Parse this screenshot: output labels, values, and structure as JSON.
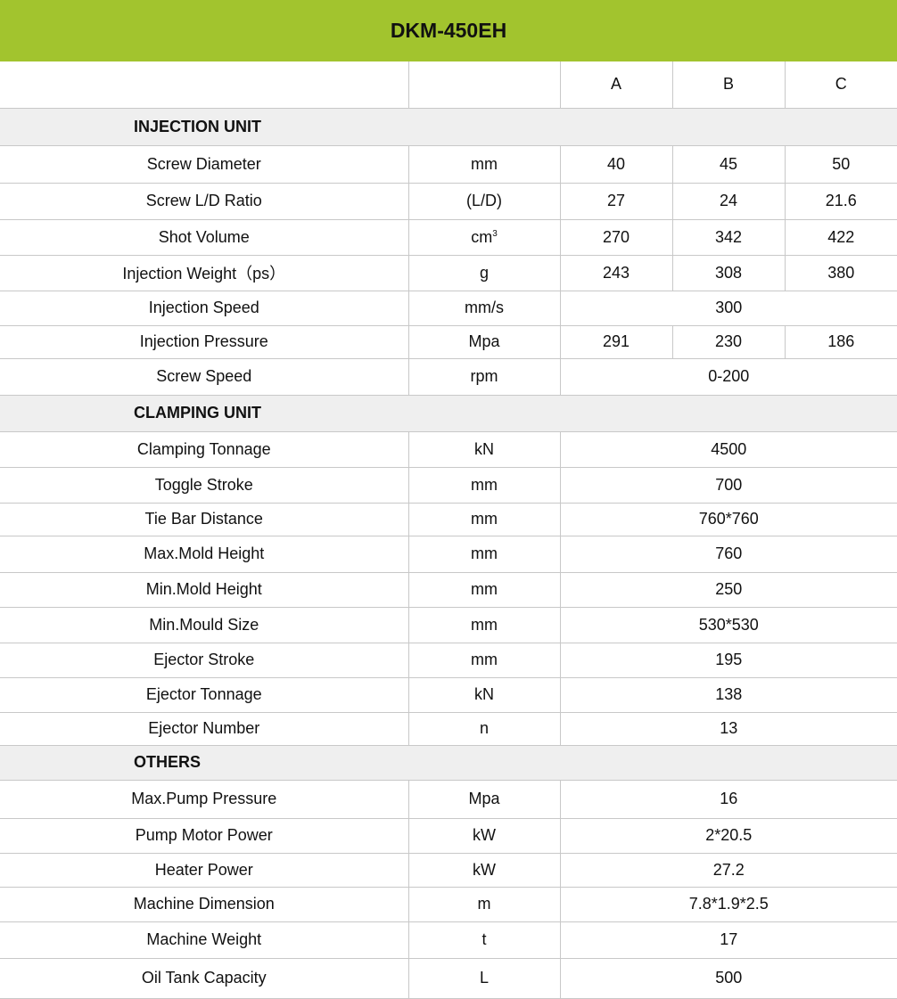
{
  "title": "DKM-450EH",
  "colors": {
    "header": "#a2c42e",
    "section": "#efefef",
    "border": "#c8c8c8"
  },
  "columns": [
    "",
    "",
    "A",
    "B",
    "C"
  ],
  "sections": [
    {
      "name": "INJECTION UNIT",
      "rows": [
        {
          "label": "Screw Diameter",
          "unit": "mm",
          "values": [
            "40",
            "45",
            "50"
          ]
        },
        {
          "label": "Screw L/D Ratio",
          "unit": "(L/D)",
          "values": [
            "27",
            "24",
            "21.6"
          ]
        },
        {
          "label": "Shot Volume",
          "unit": "cm",
          "unit_sup": "3",
          "values": [
            "270",
            "342",
            "422"
          ]
        },
        {
          "label": "Injection Weight（ps）",
          "unit": "g",
          "values": [
            "243",
            "308",
            "380"
          ]
        },
        {
          "label": "Injection Speed",
          "unit": "mm/s",
          "values": [
            "300"
          ]
        },
        {
          "label": "Injection Pressure",
          "unit": "Mpa",
          "values": [
            "291",
            "230",
            "186"
          ]
        },
        {
          "label": "Screw Speed",
          "unit": "rpm",
          "values": [
            "0-200"
          ]
        }
      ]
    },
    {
      "name": "CLAMPING UNIT",
      "rows": [
        {
          "label": "Clamping Tonnage",
          "unit": "kN",
          "values": [
            "4500"
          ]
        },
        {
          "label": "Toggle Stroke",
          "unit": "mm",
          "values": [
            "700"
          ]
        },
        {
          "label": "Tie Bar Distance",
          "unit": "mm",
          "values": [
            "760*760"
          ]
        },
        {
          "label": "Max.Mold Height",
          "unit": "mm",
          "values": [
            "760"
          ]
        },
        {
          "label": "Min.Mold Height",
          "unit": "mm",
          "values": [
            "250"
          ]
        },
        {
          "label": "Min.Mould Size",
          "unit": "mm",
          "values": [
            "530*530"
          ]
        },
        {
          "label": "Ejector Stroke",
          "unit": "mm",
          "values": [
            "195"
          ]
        },
        {
          "label": "Ejector Tonnage",
          "unit": "kN",
          "values": [
            "138"
          ]
        },
        {
          "label": "Ejector Number",
          "unit": "n",
          "values": [
            "13"
          ]
        }
      ]
    },
    {
      "name": "OTHERS",
      "rows": [
        {
          "label": "Max.Pump Pressure",
          "unit": "Mpa",
          "values": [
            "16"
          ]
        },
        {
          "label": "Pump Motor Power",
          "unit": "kW",
          "values": [
            "2*20.5"
          ]
        },
        {
          "label": "Heater Power",
          "unit": "kW",
          "values": [
            "27.2"
          ]
        },
        {
          "label": "Machine Dimension",
          "unit": "m",
          "values": [
            "7.8*1.9*2.5"
          ]
        },
        {
          "label": "Machine Weight",
          "unit": "t",
          "values": [
            "17"
          ]
        },
        {
          "label": "Oil Tank Capacity",
          "unit": "L",
          "values": [
            "500"
          ]
        }
      ]
    }
  ]
}
